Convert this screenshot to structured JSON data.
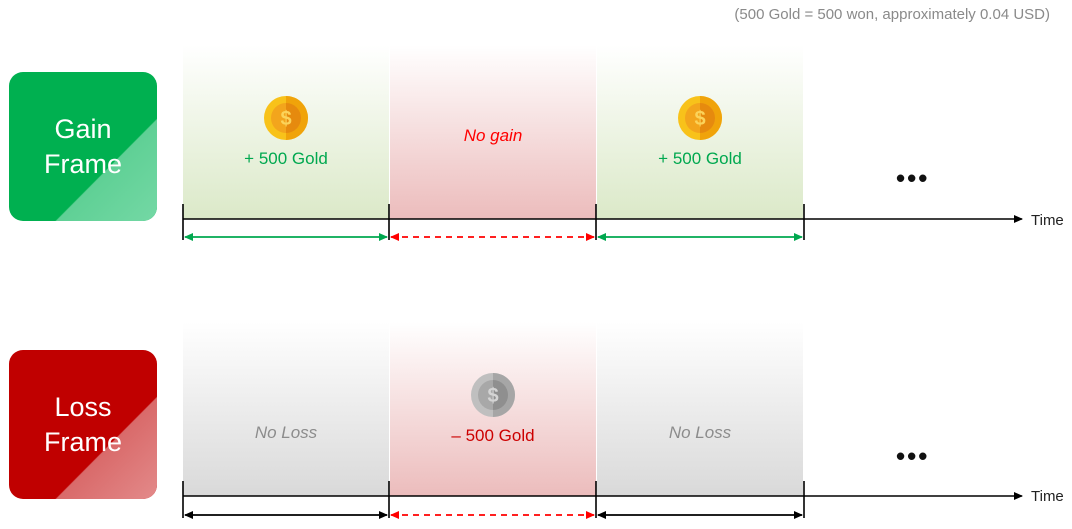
{
  "note": "(500 Gold = 500 won, approximately 0.04 USD)",
  "gain": {
    "label_line1": "Gain",
    "label_line2": "Frame",
    "panels": [
      "+ 500 Gold",
      "No gain",
      "+ 500 Gold"
    ],
    "time_label": "Time",
    "ellipsis": "•••"
  },
  "loss": {
    "label_line1": "Loss",
    "label_line2": "Frame",
    "panels": [
      "No Loss",
      "– 500 Gold",
      "No Loss"
    ],
    "time_label": "Time",
    "ellipsis": "•••"
  },
  "colors": {
    "gain_green": "#00b050",
    "loss_red": "#c00000",
    "arrow_green": "#00a84f",
    "arrow_red": "#ff0000",
    "coin_gold": "#f5b800",
    "coin_gray": "#a6a6a6"
  }
}
